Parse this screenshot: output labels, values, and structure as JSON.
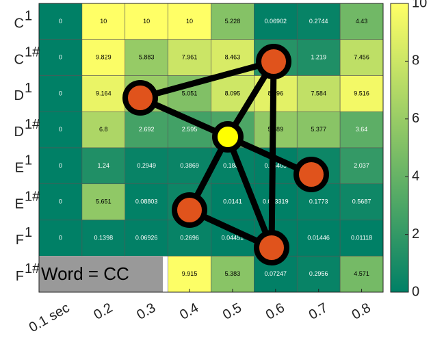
{
  "chart_data": {
    "type": "heatmap",
    "columns": [
      "0.1 sec",
      "0.2",
      "0.3",
      "0.4",
      "0.5",
      "0.6",
      "0.7",
      "0.8"
    ],
    "row_labels": [
      "C",
      "C",
      "D",
      "D",
      "E",
      "E",
      "F",
      "F"
    ],
    "row_sups": [
      "1",
      "1#",
      "1",
      "1#",
      "1",
      "1#",
      "1",
      "1#"
    ],
    "values": [
      [
        0,
        10,
        10,
        10,
        5.228,
        0.06902,
        0.2744,
        4.43
      ],
      [
        0,
        9.829,
        5.883,
        7.961,
        8.463,
        1.5,
        1.219,
        7.456
      ],
      [
        0,
        9.164,
        6,
        5.051,
        8.095,
        8.896,
        7.584,
        9.516
      ],
      [
        0,
        6.8,
        2.692,
        2.595,
        3,
        5.689,
        5.377,
        3.64
      ],
      [
        0,
        1.24,
        0.2949,
        0.3869,
        0.1883,
        0.06405,
        0.5,
        2.037
      ],
      [
        0,
        5.651,
        0.08803,
        0.5,
        0.0141,
        0.003319,
        0.1773,
        0.5687
      ],
      [
        0,
        0.1398,
        0.06926,
        0.2696,
        0.04451,
        0.05,
        0.01446,
        0.01118
      ],
      [
        null,
        null,
        null,
        9.915,
        5.383,
        0.07247,
        0.2956,
        4.571
      ]
    ],
    "colormap": "summer",
    "clim": [
      0,
      10
    ],
    "cticks": [
      0,
      2,
      4,
      6,
      8,
      10
    ],
    "annotation": "Word = CC"
  }
}
